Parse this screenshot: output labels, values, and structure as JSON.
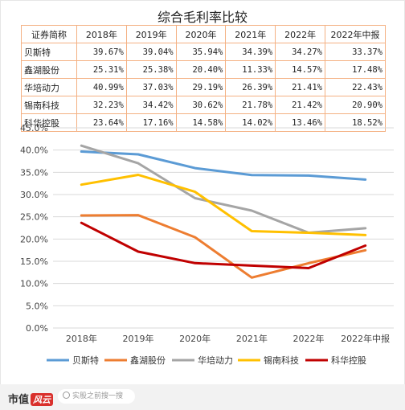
{
  "title": "综合毛利率比较",
  "table": {
    "headers": [
      "证券简称",
      "2018年",
      "2019年",
      "2020年",
      "2021年",
      "2022年",
      "2022年中报"
    ],
    "rows": [
      {
        "name": "贝斯特",
        "values": [
          "39.67%",
          "39.04%",
          "35.94%",
          "34.39%",
          "34.27%",
          "33.37%"
        ]
      },
      {
        "name": "鑫湖股份",
        "values": [
          "25.31%",
          "25.38%",
          "20.40%",
          "11.33%",
          "14.57%",
          "17.48%"
        ]
      },
      {
        "name": "华培动力",
        "values": [
          "40.99%",
          "37.03%",
          "29.19%",
          "26.39%",
          "21.41%",
          "22.43%"
        ]
      },
      {
        "name": "锡南科技",
        "values": [
          "32.23%",
          "34.42%",
          "30.62%",
          "21.78%",
          "21.42%",
          "20.90%"
        ]
      },
      {
        "name": "科华控股",
        "values": [
          "23.64%",
          "17.16%",
          "14.58%",
          "14.02%",
          "13.46%",
          "18.52%"
        ]
      }
    ]
  },
  "chart_data": {
    "type": "line",
    "categories": [
      "2018年",
      "2019年",
      "2020年",
      "2021年",
      "2022年",
      "2022年中报"
    ],
    "ylim": [
      0,
      45
    ],
    "yticks": [
      "0.0%",
      "5.0%",
      "10.0%",
      "15.0%",
      "20.0%",
      "25.0%",
      "30.0%",
      "35.0%",
      "40.0%",
      "45.0%"
    ],
    "grid": true,
    "legend_position": "bottom",
    "series": [
      {
        "name": "贝斯特",
        "color": "#5b9bd5",
        "values": [
          39.67,
          39.04,
          35.94,
          34.39,
          34.27,
          33.37
        ]
      },
      {
        "name": "鑫湖股份",
        "color": "#ed7d31",
        "values": [
          25.31,
          25.38,
          20.4,
          11.33,
          14.57,
          17.48
        ]
      },
      {
        "name": "华培动力",
        "color": "#a5a5a5",
        "values": [
          40.99,
          37.03,
          29.19,
          26.39,
          21.41,
          22.43
        ]
      },
      {
        "name": "锡南科技",
        "color": "#ffc000",
        "values": [
          32.23,
          34.42,
          30.62,
          21.78,
          21.42,
          20.9
        ]
      },
      {
        "name": "科华控股",
        "color": "#c00000",
        "values": [
          23.64,
          17.16,
          14.58,
          14.02,
          13.46,
          18.52
        ]
      }
    ]
  },
  "footer": {
    "logo_text": "市值",
    "logo_mark": "风云",
    "search_placeholder": "实股之前搜一搜"
  }
}
